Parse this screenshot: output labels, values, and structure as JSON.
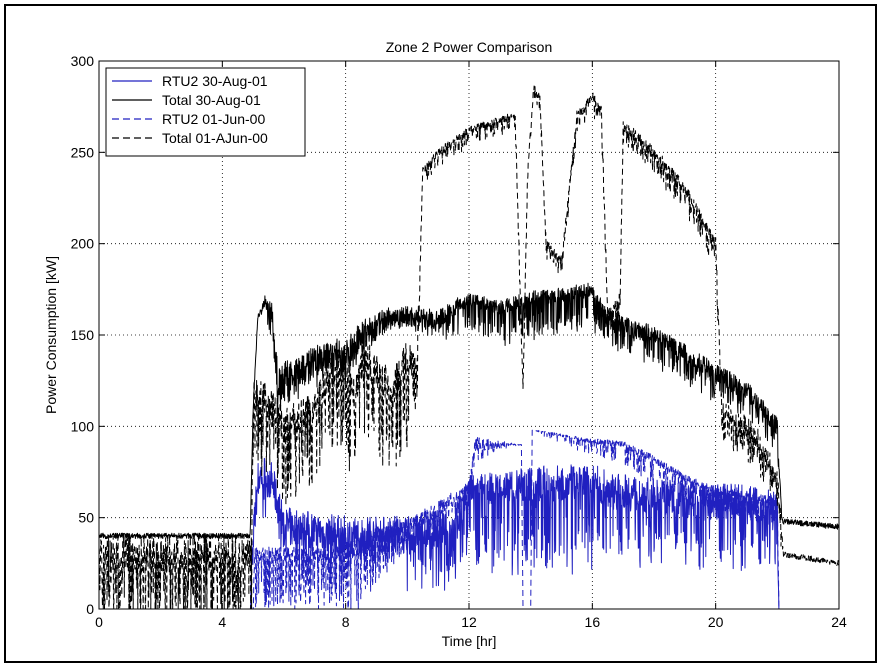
{
  "chart_data": {
    "type": "line",
    "title": "Zone 2 Power Comparison",
    "xlabel": "Time [hr]",
    "ylabel": "Power Consumption [kW]",
    "xlim": [
      0,
      24
    ],
    "ylim": [
      0,
      300
    ],
    "xticks": [
      0,
      4,
      8,
      12,
      16,
      20,
      24
    ],
    "yticks": [
      0,
      50,
      100,
      150,
      200,
      250,
      300
    ],
    "grid": true,
    "legend_position": "top-left",
    "series": [
      {
        "name": "RTU2 30-Aug-01",
        "color": "#2020c0",
        "style": "solid",
        "base": [
          [
            0,
            0
          ],
          [
            4.9,
            0
          ],
          [
            5.0,
            38
          ],
          [
            5.15,
            70
          ],
          [
            5.3,
            75
          ],
          [
            5.6,
            70
          ],
          [
            6.0,
            45
          ],
          [
            8.0,
            40
          ],
          [
            10.0,
            40
          ],
          [
            10.5,
            42
          ],
          [
            11.5,
            45
          ],
          [
            12.0,
            65
          ],
          [
            14.0,
            68
          ],
          [
            16.0,
            70
          ],
          [
            16.5,
            65
          ],
          [
            19.0,
            60
          ],
          [
            21.0,
            58
          ],
          [
            22.0,
            55
          ],
          [
            22.05,
            0
          ],
          [
            24,
            0
          ]
        ],
        "pulse": [
          [
            5.8,
            22,
            -14,
            0.35
          ],
          [
            7.8,
            22,
            -14,
            0.35
          ],
          [
            7.9,
            22,
            -14,
            0.35
          ],
          [
            9.95,
            22,
            0,
            0.45
          ],
          [
            10.0,
            22,
            -22,
            0.55
          ],
          [
            12.0,
            16,
            -22,
            0.55
          ],
          [
            12.05,
            16,
            -34,
            0.5
          ],
          [
            14.0,
            20,
            -36,
            0.45
          ],
          [
            16.0,
            20,
            -36,
            0.45
          ],
          [
            16.05,
            20,
            -28,
            0.4
          ],
          [
            22.0,
            20,
            -24,
            0.4
          ]
        ]
      },
      {
        "name": "Total 30-Aug-01",
        "color": "#000000",
        "style": "solid",
        "base": [
          [
            0,
            40
          ],
          [
            4.9,
            40
          ],
          [
            5.0,
            110
          ],
          [
            5.15,
            160
          ],
          [
            5.4,
            168
          ],
          [
            5.6,
            160
          ],
          [
            5.8,
            125
          ],
          [
            6.5,
            130
          ],
          [
            7.5,
            140
          ],
          [
            8.0,
            138
          ],
          [
            8.5,
            150
          ],
          [
            9.5,
            160
          ],
          [
            10.3,
            160
          ],
          [
            10.6,
            160
          ],
          [
            11.0,
            158
          ],
          [
            11.5,
            165
          ],
          [
            12.0,
            170
          ],
          [
            13.0,
            165
          ],
          [
            14.0,
            170
          ],
          [
            15.0,
            172
          ],
          [
            16.0,
            175
          ],
          [
            16.5,
            160
          ],
          [
            17.0,
            155
          ],
          [
            18.0,
            150
          ],
          [
            19.0,
            140
          ],
          [
            20.0,
            130
          ],
          [
            21.0,
            120
          ],
          [
            22.0,
            100
          ],
          [
            22.15,
            48
          ],
          [
            24,
            45
          ]
        ],
        "pulse": [
          [
            5.2,
            3,
            0,
            0
          ],
          [
            5.7,
            18,
            -8,
            0.55
          ],
          [
            8.0,
            18,
            -6,
            0.6
          ],
          [
            10.0,
            12,
            0,
            0
          ],
          [
            10.4,
            12,
            -6,
            0.5
          ],
          [
            12.0,
            8,
            -12,
            0.5
          ],
          [
            12.2,
            8,
            -16,
            0.55
          ],
          [
            16.0,
            8,
            -16,
            0.55
          ],
          [
            16.4,
            10,
            -12,
            0.5
          ],
          [
            22.0,
            10,
            -10,
            0.5
          ],
          [
            22.2,
            3,
            0,
            0
          ]
        ]
      },
      {
        "name": "RTU2 01-Jun-00",
        "color": "#2020c0",
        "style": "dashed",
        "base": [
          [
            0,
            0
          ],
          [
            5.0,
            0
          ],
          [
            5.05,
            30
          ],
          [
            5.7,
            30
          ],
          [
            6.5,
            30
          ],
          [
            7.5,
            30
          ],
          [
            8.2,
            32
          ],
          [
            8.5,
            35
          ],
          [
            9.0,
            40
          ],
          [
            10.0,
            45
          ],
          [
            11.0,
            55
          ],
          [
            12.0,
            65
          ],
          [
            12.2,
            90
          ],
          [
            13.0,
            90
          ],
          [
            13.7,
            90
          ],
          [
            13.75,
            0
          ],
          [
            14.0,
            0
          ],
          [
            14.05,
            98
          ],
          [
            16.0,
            92
          ],
          [
            17.0,
            90
          ],
          [
            18.0,
            82
          ],
          [
            19.0,
            72
          ],
          [
            20.0,
            65
          ],
          [
            21.0,
            62
          ],
          [
            22.0,
            60
          ],
          [
            22.05,
            0
          ],
          [
            24,
            0
          ]
        ],
        "pulse": [
          [
            5.7,
            8,
            -24,
            0.5
          ],
          [
            7.6,
            8,
            -24,
            0.5
          ],
          [
            8.2,
            10,
            -30,
            0.5
          ],
          [
            10.0,
            10,
            -10,
            0.5
          ],
          [
            12.0,
            10,
            -6,
            0.4
          ],
          [
            13.7,
            0,
            0,
            0
          ],
          [
            17.3,
            4,
            -10,
            0.5
          ],
          [
            19.2,
            4,
            -10,
            0.5
          ]
        ]
      },
      {
        "name": "Total 01-AJun-00",
        "color": "#000000",
        "style": "dashed",
        "base": [
          [
            0,
            30
          ],
          [
            4.95,
            30
          ],
          [
            5.0,
            120
          ],
          [
            5.3,
            115
          ],
          [
            5.6,
            110
          ],
          [
            6.0,
            100
          ],
          [
            7.0,
            110
          ],
          [
            7.5,
            130
          ],
          [
            8.0,
            130
          ],
          [
            8.3,
            115
          ],
          [
            8.6,
            140
          ],
          [
            9.0,
            130
          ],
          [
            9.5,
            120
          ],
          [
            10.0,
            140
          ],
          [
            10.3,
            130
          ],
          [
            10.5,
            240
          ],
          [
            11.0,
            250
          ],
          [
            12.0,
            262
          ],
          [
            13.0,
            268
          ],
          [
            13.5,
            270
          ],
          [
            13.75,
            120
          ],
          [
            13.9,
            240
          ],
          [
            14.1,
            285
          ],
          [
            14.3,
            280
          ],
          [
            14.5,
            200
          ],
          [
            15.0,
            190
          ],
          [
            15.5,
            270
          ],
          [
            16.0,
            280
          ],
          [
            16.3,
            272
          ],
          [
            16.5,
            160
          ],
          [
            16.9,
            170
          ],
          [
            17.0,
            265
          ],
          [
            18.0,
            250
          ],
          [
            19.0,
            230
          ],
          [
            20.0,
            200
          ],
          [
            20.2,
            110
          ],
          [
            20.5,
            105
          ],
          [
            21.0,
            100
          ],
          [
            21.5,
            90
          ],
          [
            22.0,
            70
          ],
          [
            22.2,
            30
          ],
          [
            24,
            25
          ]
        ],
        "pulse": [
          [
            5.6,
            20,
            -30,
            0.55
          ],
          [
            10.0,
            20,
            -40,
            0.55
          ],
          [
            10.5,
            4,
            -6,
            0.5
          ],
          [
            14.0,
            4,
            -6,
            0.5
          ],
          [
            16.9,
            7,
            -8,
            0.5
          ],
          [
            20.1,
            7,
            -10,
            0.5
          ],
          [
            20.2,
            12,
            -12,
            0.5
          ],
          [
            22.1,
            12,
            -12,
            0.5
          ],
          [
            22.2,
            3,
            0,
            0
          ]
        ]
      }
    ]
  }
}
